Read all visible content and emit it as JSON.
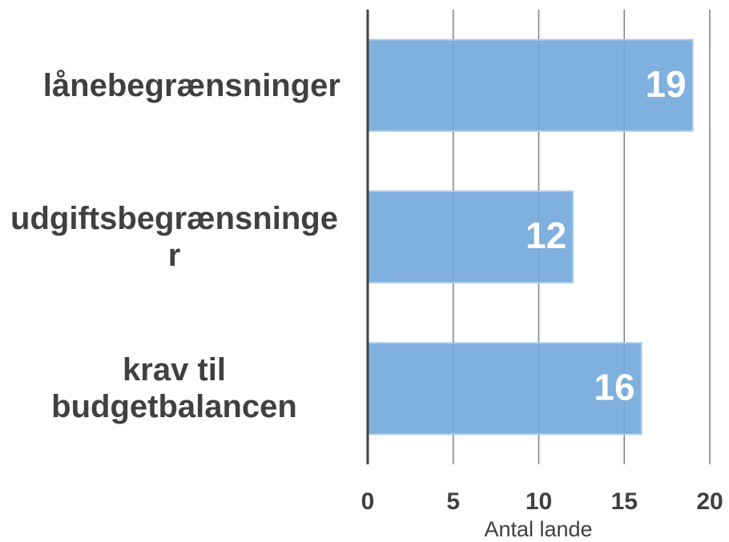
{
  "chart_data": {
    "type": "hbar",
    "categories": [
      "lånebegrænsninger",
      "udgiftsbegrænsninger",
      "krav til budgetbalancen"
    ],
    "values": [
      19,
      12,
      16
    ],
    "color": "#74a9db",
    "xlabel": "Antal lande",
    "xlim": [
      0,
      20
    ],
    "xticks": [
      0,
      5,
      10,
      15,
      20
    ],
    "grid": true
  }
}
